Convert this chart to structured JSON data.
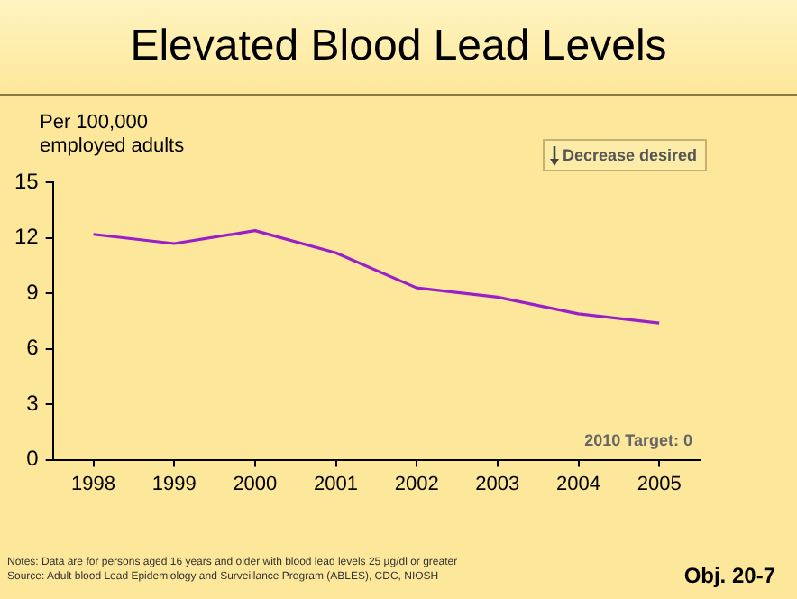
{
  "chart_data": {
    "type": "line",
    "title": "Elevated Blood Lead Levels",
    "ylabel": "Per 100,000 employed adults",
    "categories": [
      "1998",
      "1999",
      "2000",
      "2001",
      "2002",
      "2003",
      "2004",
      "2005"
    ],
    "series": [
      {
        "color": "#9a1fc8",
        "values": [
          12.2,
          11.7,
          12.4,
          11.2,
          9.3,
          8.8,
          7.9,
          7.4
        ]
      }
    ],
    "ylim": [
      0,
      15
    ],
    "yticks": [
      0,
      3,
      6,
      9,
      12,
      15
    ],
    "grid": false,
    "legend": false,
    "marker": "none",
    "line_style": "solid",
    "annotations": [
      "Decrease desired",
      "2010 Target: 0",
      "Notes: Data are for  persons aged 16 years and older with blood lead levels 25 µg/dl or greater",
      "Source: Adult blood Lead Epidemiology and Surveillance Program (ABLES), CDC, NIOSH",
      "Obj. 20-7"
    ]
  }
}
